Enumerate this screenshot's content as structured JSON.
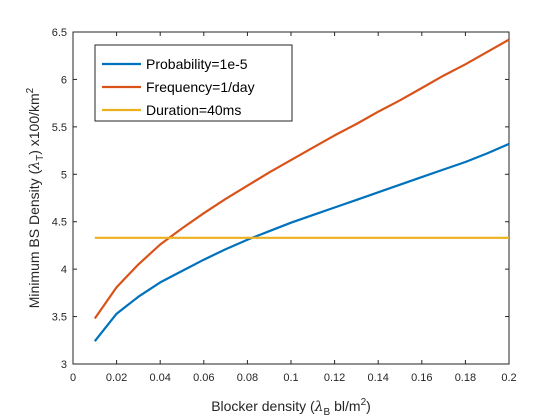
{
  "chart_data": {
    "type": "line",
    "xlabel": {
      "prefix": "Blocker density (",
      "sym": "λ",
      "sub": "B",
      "unit": " bl/m",
      "sup": "2",
      "suffix": ")"
    },
    "ylabel": {
      "prefix": "Minimum BS Density (",
      "sym": "λ",
      "sub": "T",
      "unit": ") x100/km",
      "sup": "2"
    },
    "xlim": [
      0,
      0.2
    ],
    "ylim": [
      3,
      6.5
    ],
    "xticks": [
      0,
      0.02,
      0.04,
      0.06,
      0.08,
      0.1,
      0.12,
      0.14,
      0.16,
      0.18,
      0.2
    ],
    "xtick_labels": [
      "0",
      "0.02",
      "0.04",
      "0.06",
      "0.08",
      "0.1",
      "0.12",
      "0.14",
      "0.16",
      "0.18",
      "0.2"
    ],
    "yticks": [
      3,
      3.5,
      4,
      4.5,
      5,
      5.5,
      6,
      6.5
    ],
    "ytick_labels": [
      "3",
      "3.5",
      "4",
      "4.5",
      "5",
      "5.5",
      "6",
      "6.5"
    ],
    "grid": false,
    "legend_position": "top-left",
    "series": [
      {
        "name": "Probability=1e-5",
        "color": "#0072BD",
        "x": [
          0.01,
          0.02,
          0.03,
          0.04,
          0.05,
          0.06,
          0.07,
          0.08,
          0.09,
          0.1,
          0.11,
          0.12,
          0.13,
          0.14,
          0.15,
          0.16,
          0.17,
          0.18,
          0.19,
          0.2
        ],
        "y": [
          3.24,
          3.53,
          3.71,
          3.86,
          3.98,
          4.1,
          4.21,
          4.31,
          4.4,
          4.49,
          4.57,
          4.65,
          4.73,
          4.81,
          4.89,
          4.97,
          5.05,
          5.13,
          5.22,
          5.32
        ]
      },
      {
        "name": "Frequency=1/day",
        "color": "#D95319",
        "x": [
          0.01,
          0.02,
          0.03,
          0.04,
          0.05,
          0.06,
          0.07,
          0.08,
          0.09,
          0.1,
          0.11,
          0.12,
          0.13,
          0.14,
          0.15,
          0.16,
          0.17,
          0.18,
          0.19,
          0.2
        ],
        "y": [
          3.48,
          3.81,
          4.05,
          4.26,
          4.43,
          4.59,
          4.74,
          4.88,
          5.02,
          5.15,
          5.28,
          5.41,
          5.53,
          5.66,
          5.78,
          5.91,
          6.04,
          6.16,
          6.29,
          6.42
        ]
      },
      {
        "name": "Duration=40ms",
        "color": "#EDB120",
        "x": [
          0.01,
          0.2
        ],
        "y": [
          4.33,
          4.33
        ]
      }
    ]
  }
}
